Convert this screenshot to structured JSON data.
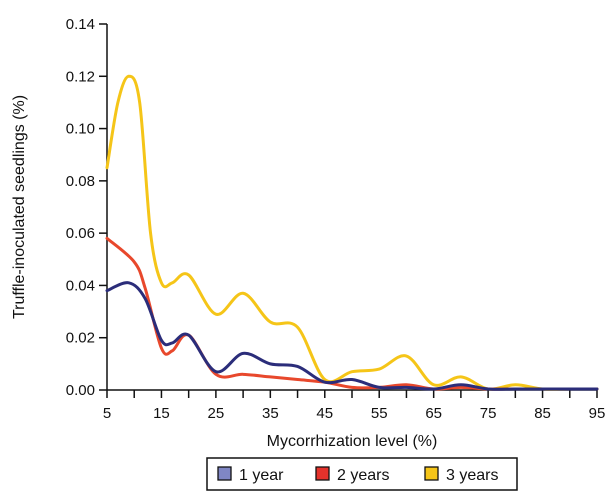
{
  "chart_data": {
    "type": "line",
    "title": "",
    "xlabel": "Mycorrhization level (%)",
    "ylabel": "Truffle-inoculated seedlings (%)",
    "xlim": [
      5,
      95
    ],
    "ylim": [
      0,
      0.14
    ],
    "x_ticks": [
      5,
      15,
      25,
      35,
      45,
      55,
      65,
      75,
      85,
      95
    ],
    "y_ticks": [
      0,
      0.02,
      0.04,
      0.06,
      0.08,
      0.1,
      0.12,
      0.14
    ],
    "y_tick_labels": [
      "0.00",
      "0.02",
      "0.04",
      "0.06",
      "0.08",
      "0.10",
      "0.12",
      "0.14"
    ],
    "grid": false,
    "legend_position": "bottom",
    "series": [
      {
        "name": "1 year",
        "color": "#2b2d7a",
        "legend_color": "#7f86c4",
        "x": [
          5,
          9,
          12,
          15,
          17,
          20,
          25,
          30,
          35,
          40,
          45,
          50,
          55,
          60,
          65,
          70,
          75,
          80,
          85,
          90,
          95
        ],
        "values": [
          0.038,
          0.041,
          0.035,
          0.019,
          0.018,
          0.021,
          0.007,
          0.014,
          0.01,
          0.009,
          0.003,
          0.004,
          0.001,
          0.001,
          0.0,
          0.002,
          0.0,
          0.0,
          0.0,
          0.0,
          0.0
        ]
      },
      {
        "name": "2 years",
        "color": "#e8482c",
        "legend_color": "#e5322b",
        "x": [
          5,
          10,
          12,
          15,
          17,
          20,
          25,
          30,
          35,
          40,
          45,
          50,
          55,
          60,
          65,
          70,
          75,
          80,
          85,
          90,
          95
        ],
        "values": [
          0.058,
          0.049,
          0.039,
          0.016,
          0.015,
          0.021,
          0.006,
          0.006,
          0.005,
          0.004,
          0.003,
          0.001,
          0.001,
          0.002,
          0.0,
          0.001,
          0.0,
          0.0,
          0.0,
          0.0,
          0.0
        ]
      },
      {
        "name": "3 years",
        "color": "#f5c518",
        "legend_color": "#f5c518",
        "x": [
          5,
          7,
          9,
          11,
          13,
          15,
          17,
          20,
          25,
          30,
          35,
          40,
          45,
          50,
          55,
          60,
          65,
          70,
          75,
          80,
          85,
          90,
          95
        ],
        "values": [
          0.085,
          0.11,
          0.12,
          0.11,
          0.06,
          0.041,
          0.041,
          0.044,
          0.029,
          0.037,
          0.026,
          0.024,
          0.004,
          0.007,
          0.008,
          0.013,
          0.002,
          0.005,
          0.0,
          0.002,
          0.0,
          0.0,
          0.0
        ]
      }
    ]
  }
}
